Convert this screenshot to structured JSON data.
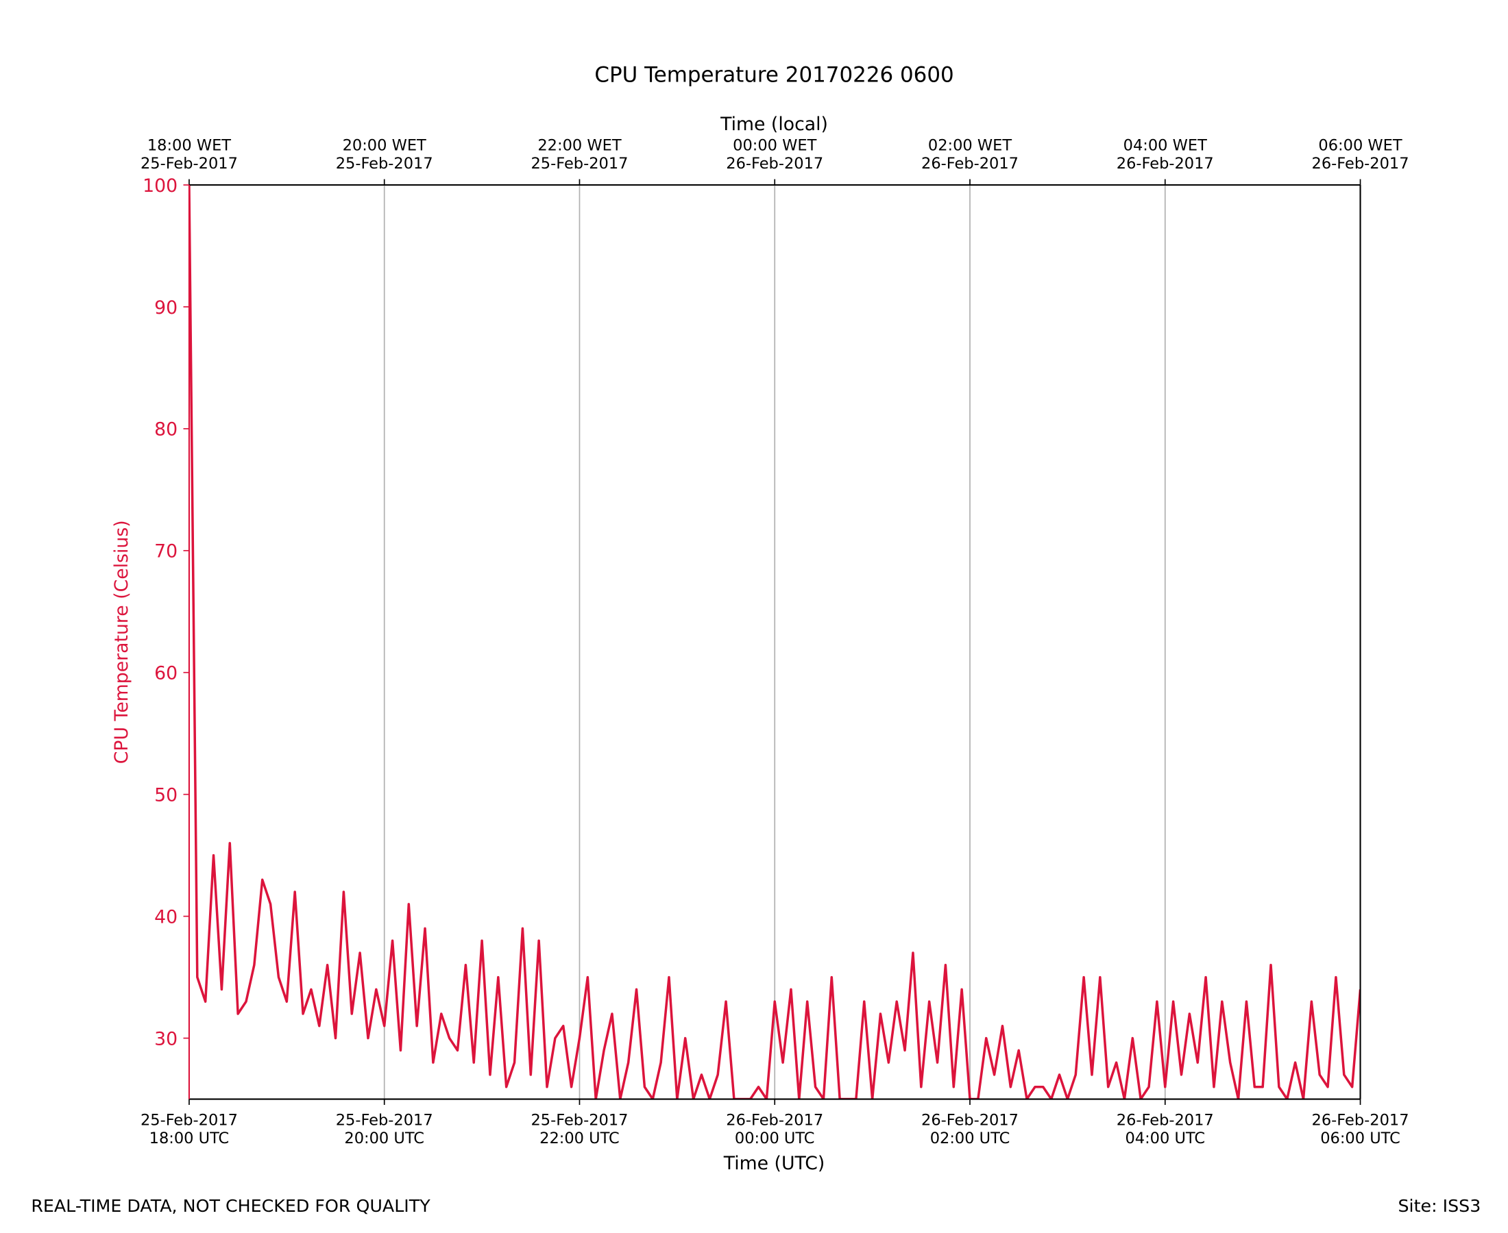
{
  "chart_data": {
    "type": "line",
    "title": "CPU Temperature 20170226 0600",
    "xlabel": "Time (UTC)",
    "x2label": "Time (local)",
    "ylabel": "CPU Temperature (Celsius)",
    "footer_left": "REAL-TIME DATA, NOT CHECKED FOR QUALITY",
    "footer_right": "Site: ISS3",
    "color": "#dc143c",
    "grid": "x",
    "xlim": [
      "2017-02-25 18:00",
      "2017-02-26 06:00"
    ],
    "xticks": [
      {
        "value": "2017-02-25 18:00",
        "label": "25-Feb-2017\n18:00 UTC"
      },
      {
        "value": "2017-02-25 20:00",
        "label": "25-Feb-2017\n20:00 UTC"
      },
      {
        "value": "2017-02-25 22:00",
        "label": "25-Feb-2017\n22:00 UTC"
      },
      {
        "value": "2017-02-26 00:00",
        "label": "26-Feb-2017\n00:00 UTC"
      },
      {
        "value": "2017-02-26 02:00",
        "label": "26-Feb-2017\n02:00 UTC"
      },
      {
        "value": "2017-02-26 04:00",
        "label": "26-Feb-2017\n04:00 UTC"
      },
      {
        "value": "2017-02-26 06:00",
        "label": "26-Feb-2017\n06:00 UTC"
      }
    ],
    "x2ticks": [
      {
        "value": "2017-02-25 18:00",
        "label": "18:00 WET\n25-Feb-2017"
      },
      {
        "value": "2017-02-25 20:00",
        "label": "20:00 WET\n25-Feb-2017"
      },
      {
        "value": "2017-02-25 22:00",
        "label": "22:00 WET\n25-Feb-2017"
      },
      {
        "value": "2017-02-26 00:00",
        "label": "00:00 WET\n26-Feb-2017"
      },
      {
        "value": "2017-02-26 02:00",
        "label": "02:00 WET\n26-Feb-2017"
      },
      {
        "value": "2017-02-26 04:00",
        "label": "04:00 WET\n26-Feb-2017"
      },
      {
        "value": "2017-02-26 06:00",
        "label": "06:00 WET\n26-Feb-2017"
      }
    ],
    "ylim": [
      25,
      100
    ],
    "yticks": [
      30,
      40,
      50,
      60,
      70,
      80,
      90,
      100
    ],
    "x": [
      "2017-02-25 18:00",
      "2017-02-25 18:05",
      "2017-02-25 18:10",
      "2017-02-25 18:15",
      "2017-02-25 18:20",
      "2017-02-25 18:25",
      "2017-02-25 18:30",
      "2017-02-25 18:35",
      "2017-02-25 18:40",
      "2017-02-25 18:45",
      "2017-02-25 18:50",
      "2017-02-25 18:55",
      "2017-02-25 19:00",
      "2017-02-25 19:05",
      "2017-02-25 19:10",
      "2017-02-25 19:15",
      "2017-02-25 19:20",
      "2017-02-25 19:25",
      "2017-02-25 19:30",
      "2017-02-25 19:35",
      "2017-02-25 19:40",
      "2017-02-25 19:45",
      "2017-02-25 19:50",
      "2017-02-25 19:55",
      "2017-02-25 20:00",
      "2017-02-25 20:05",
      "2017-02-25 20:10",
      "2017-02-25 20:15",
      "2017-02-25 20:20",
      "2017-02-25 20:25",
      "2017-02-25 20:30",
      "2017-02-25 20:35",
      "2017-02-25 20:40",
      "2017-02-25 20:45",
      "2017-02-25 20:50",
      "2017-02-25 20:55",
      "2017-02-25 21:00",
      "2017-02-25 21:05",
      "2017-02-25 21:10",
      "2017-02-25 21:15",
      "2017-02-25 21:20",
      "2017-02-25 21:25",
      "2017-02-25 21:30",
      "2017-02-25 21:35",
      "2017-02-25 21:40",
      "2017-02-25 21:45",
      "2017-02-25 21:50",
      "2017-02-25 21:55",
      "2017-02-25 22:00",
      "2017-02-25 22:05",
      "2017-02-25 22:10",
      "2017-02-25 22:15",
      "2017-02-25 22:20",
      "2017-02-25 22:25",
      "2017-02-25 22:30",
      "2017-02-25 22:35",
      "2017-02-25 22:40",
      "2017-02-25 22:45",
      "2017-02-25 22:50",
      "2017-02-25 22:55",
      "2017-02-25 23:00",
      "2017-02-25 23:05",
      "2017-02-25 23:10",
      "2017-02-25 23:15",
      "2017-02-25 23:20",
      "2017-02-25 23:25",
      "2017-02-25 23:30",
      "2017-02-25 23:35",
      "2017-02-25 23:40",
      "2017-02-25 23:45",
      "2017-02-25 23:50",
      "2017-02-25 23:55",
      "2017-02-26 00:00",
      "2017-02-26 00:05",
      "2017-02-26 00:10",
      "2017-02-26 00:15",
      "2017-02-26 00:20",
      "2017-02-26 00:25",
      "2017-02-26 00:30",
      "2017-02-26 00:35",
      "2017-02-26 00:40",
      "2017-02-26 00:45",
      "2017-02-26 00:50",
      "2017-02-26 00:55",
      "2017-02-26 01:00",
      "2017-02-26 01:05",
      "2017-02-26 01:10",
      "2017-02-26 01:15",
      "2017-02-26 01:20",
      "2017-02-26 01:25",
      "2017-02-26 01:30",
      "2017-02-26 01:35",
      "2017-02-26 01:40",
      "2017-02-26 01:45",
      "2017-02-26 01:50",
      "2017-02-26 01:55",
      "2017-02-26 02:00",
      "2017-02-26 02:05",
      "2017-02-26 02:10",
      "2017-02-26 02:15",
      "2017-02-26 02:20",
      "2017-02-26 02:25",
      "2017-02-26 02:30",
      "2017-02-26 02:35",
      "2017-02-26 02:40",
      "2017-02-26 02:45",
      "2017-02-26 02:50",
      "2017-02-26 02:55",
      "2017-02-26 03:00",
      "2017-02-26 03:05",
      "2017-02-26 03:10",
      "2017-02-26 03:15",
      "2017-02-26 03:20",
      "2017-02-26 03:25",
      "2017-02-26 03:30",
      "2017-02-26 03:35",
      "2017-02-26 03:40",
      "2017-02-26 03:45",
      "2017-02-26 03:50",
      "2017-02-26 03:55",
      "2017-02-26 04:00",
      "2017-02-26 04:05",
      "2017-02-26 04:10",
      "2017-02-26 04:15",
      "2017-02-26 04:20",
      "2017-02-26 04:25",
      "2017-02-26 04:30",
      "2017-02-26 04:35",
      "2017-02-26 04:40",
      "2017-02-26 04:45",
      "2017-02-26 04:50",
      "2017-02-26 04:55",
      "2017-02-26 05:00",
      "2017-02-26 05:05",
      "2017-02-26 05:10",
      "2017-02-26 05:15",
      "2017-02-26 05:20",
      "2017-02-26 05:25",
      "2017-02-26 05:30",
      "2017-02-26 05:35",
      "2017-02-26 05:40",
      "2017-02-26 05:45",
      "2017-02-26 05:50",
      "2017-02-26 05:55",
      "2017-02-26 06:00"
    ],
    "values": [
      100,
      35,
      33,
      45,
      34,
      46,
      32,
      33,
      36,
      43,
      41,
      35,
      33,
      42,
      32,
      34,
      31,
      36,
      30,
      42,
      32,
      37,
      30,
      34,
      31,
      38,
      29,
      41,
      31,
      39,
      28,
      32,
      30,
      29,
      36,
      28,
      38,
      27,
      35,
      26,
      28,
      39,
      27,
      38,
      26,
      30,
      31,
      26,
      30,
      35,
      25,
      29,
      32,
      25,
      28,
      34,
      26,
      25,
      28,
      35,
      25,
      30,
      25,
      27,
      25,
      27,
      33,
      25,
      25,
      25,
      26,
      25,
      33,
      28,
      34,
      25,
      33,
      26,
      25,
      35,
      25,
      25,
      25,
      33,
      25,
      32,
      28,
      33,
      29,
      37,
      26,
      33,
      28,
      36,
      26,
      34,
      25,
      25,
      30,
      27,
      31,
      26,
      29,
      25,
      26,
      26,
      25,
      27,
      25,
      27,
      35,
      27,
      35,
      26,
      28,
      25,
      30,
      25,
      26,
      33,
      26,
      33,
      27,
      32,
      28,
      35,
      26,
      33,
      28,
      25,
      33,
      26,
      26,
      36,
      26,
      25,
      28,
      25,
      33,
      27,
      26,
      35,
      27,
      26,
      34
    ]
  }
}
